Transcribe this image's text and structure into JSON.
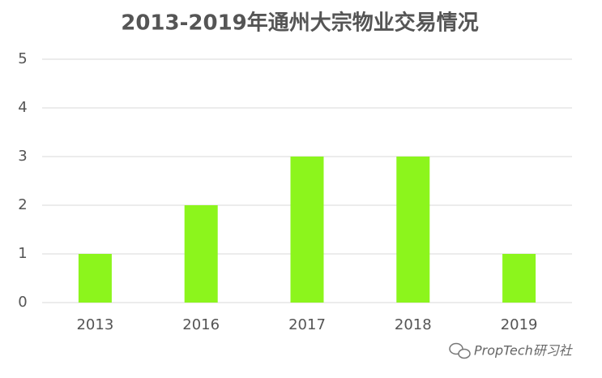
{
  "chart_data": {
    "type": "bar",
    "title": "2013-2019年通州大宗物业交易情况",
    "categories": [
      "2013",
      "2016",
      "2017",
      "2018",
      "2019"
    ],
    "values": [
      1,
      2,
      3,
      3,
      1
    ],
    "color": "#8cf51c",
    "ylim": [
      0,
      5
    ],
    "yticks": [
      0,
      1,
      2,
      3,
      4,
      5
    ],
    "grid": true,
    "watermark": "PropTech研习社"
  }
}
